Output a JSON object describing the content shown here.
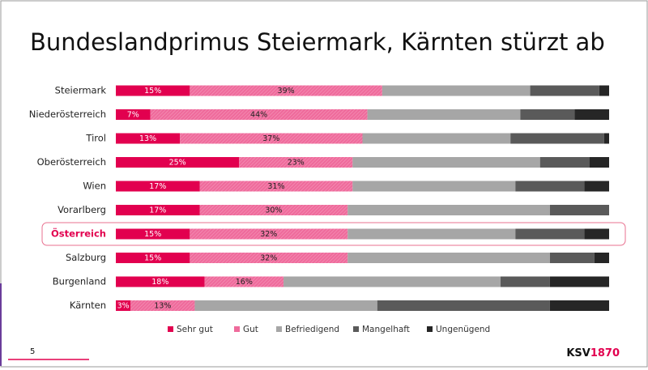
{
  "chart_data": {
    "type": "stacked-bar-horizontal",
    "title": "Bundeslandprimus Steiermark, Kärnten stürzt ab",
    "categories": [
      "Steiermark",
      "Niederösterreich",
      "Tirol",
      "Oberösterreich",
      "Wien",
      "Vorarlberg",
      "Österreich",
      "Salzburg",
      "Burgenland",
      "Kärnten"
    ],
    "xlim": [
      0,
      100
    ],
    "highlight_index": 6,
    "legend_position": "bottom",
    "series": [
      {
        "name": "Sehr gut",
        "color": "#e2004f",
        "values": [
          15,
          7,
          13,
          25,
          17,
          17,
          15,
          15,
          18,
          3
        ],
        "value_labels": [
          "15%",
          "7%",
          "13%",
          "25%",
          "17%",
          "17%",
          "15%",
          "15%",
          "18%",
          "3%"
        ]
      },
      {
        "name": "Gut",
        "color": "#ef6b9c",
        "values": [
          39,
          44,
          37,
          23,
          31,
          30,
          32,
          32,
          16,
          13
        ],
        "value_labels": [
          "39%",
          "44%",
          "37%",
          "23%",
          "31%",
          "30%",
          "32%",
          "32%",
          "16%",
          "13%"
        ]
      },
      {
        "name": "Befriedigend",
        "color": "#a6a6a6",
        "values": [
          30,
          31,
          30,
          38,
          33,
          41,
          34,
          41,
          44,
          37
        ]
      },
      {
        "name": "Mangelhaft",
        "color": "#5a5a5a",
        "values": [
          14,
          11,
          19,
          10,
          14,
          12,
          14,
          9,
          10,
          35
        ]
      },
      {
        "name": "Ungenügend",
        "color": "#262626",
        "values": [
          2,
          7,
          1,
          4,
          5,
          0,
          5,
          3,
          12,
          12
        ]
      }
    ]
  },
  "page_number": "5",
  "logo": {
    "left": "KSV",
    "right": "1870"
  }
}
